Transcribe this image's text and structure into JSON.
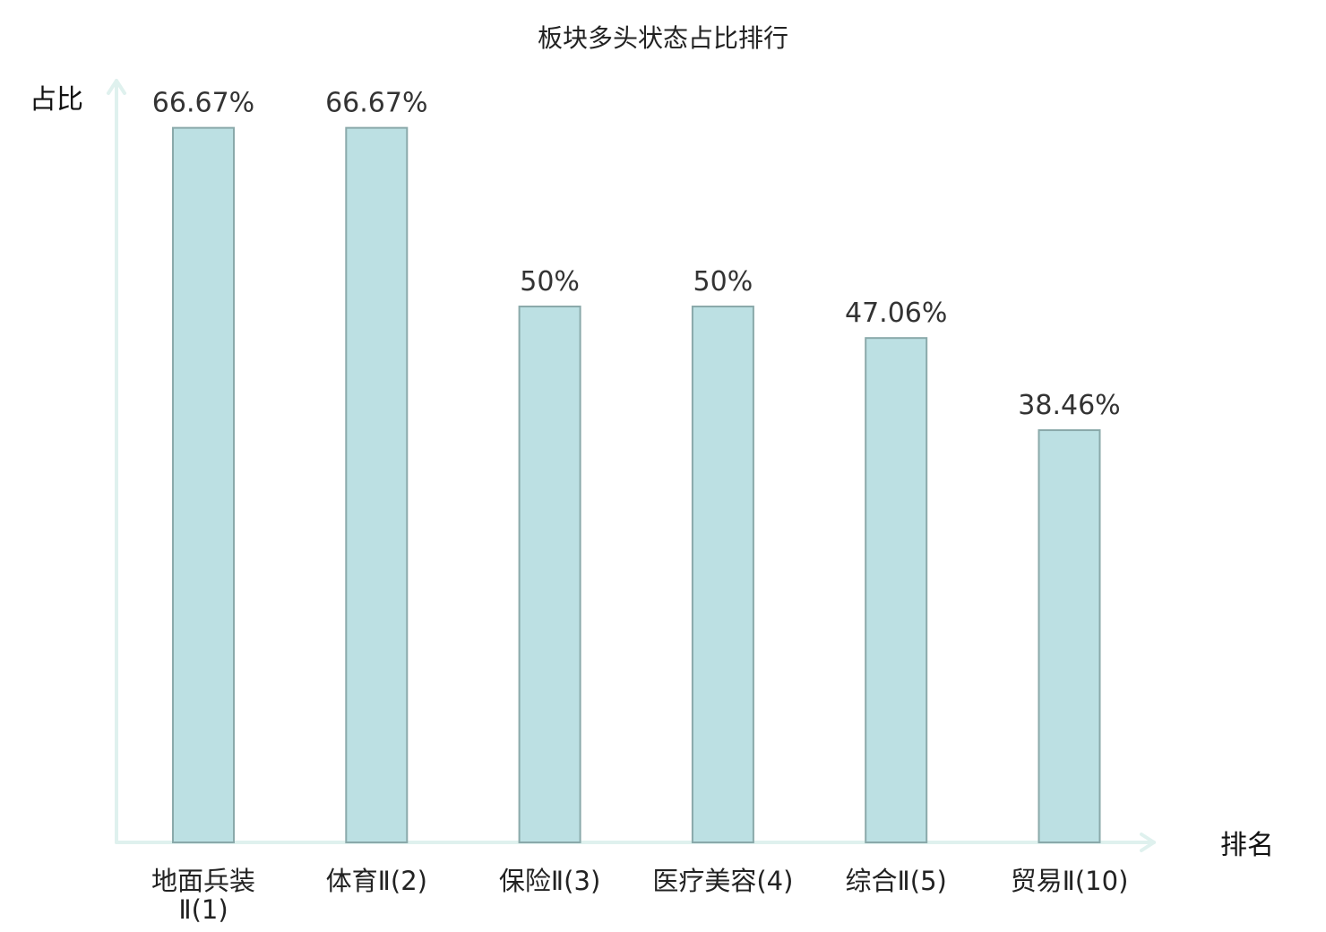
{
  "chart_data": {
    "type": "bar",
    "title": "板块多头状态占比排行",
    "ylabel": "占比",
    "xlabel": "排名",
    "categories": [
      "地面兵装Ⅱ(1)",
      "体育Ⅱ(2)",
      "保险Ⅱ(3)",
      "医疗美容(4)",
      "综合Ⅱ(5)",
      "贸易Ⅱ(10)"
    ],
    "category_lines": [
      [
        "地面兵装",
        "Ⅱ(1)"
      ],
      [
        "体育Ⅱ(2)"
      ],
      [
        "保险Ⅱ(3)"
      ],
      [
        "医疗美容(4)"
      ],
      [
        "综合Ⅱ(5)"
      ],
      [
        "贸易Ⅱ(10)"
      ]
    ],
    "values": [
      66.67,
      66.67,
      50,
      50,
      47.06,
      38.46
    ],
    "value_labels": [
      "66.67%",
      "66.67%",
      "50%",
      "50%",
      "47.06%",
      "38.46%"
    ],
    "highlight_index": 5,
    "ylim": [
      0,
      69.4
    ],
    "grid": false,
    "colors": {
      "bar_fill": "#bce0e3",
      "bar_stroke": "#8aa9aa",
      "axis": "#dff1ee",
      "highlight_text": "#e02020"
    }
  }
}
